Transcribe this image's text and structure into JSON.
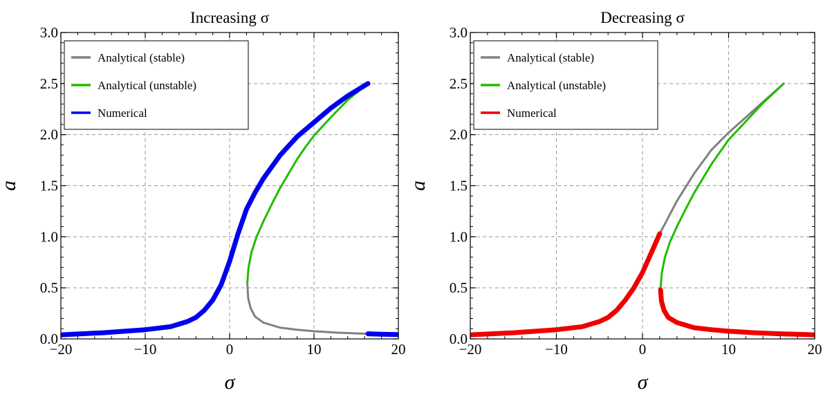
{
  "chart_data": [
    {
      "type": "line",
      "title": "Increasing σ",
      "xlabel": "σ",
      "ylabel": "a",
      "xlim": [
        -20,
        20
      ],
      "ylim": [
        0,
        3
      ],
      "xticks": [
        -20,
        -10,
        0,
        10,
        20
      ],
      "xtick_labels": [
        "−20",
        "−10",
        "0",
        "10",
        "20"
      ],
      "yticks": [
        0,
        0.5,
        1,
        1.5,
        2,
        2.5,
        3
      ],
      "ytick_labels": [
        "0.0",
        "0.5",
        "1.0",
        "1.5",
        "2.0",
        "2.5",
        "3.0"
      ],
      "grid": true,
      "legend_position": "top-left",
      "series": [
        {
          "name": "Analytical (stable)",
          "color": "#808080",
          "width": 3,
          "x": [
            -20,
            -10,
            -5,
            -3,
            -1,
            0,
            1,
            2,
            4,
            6,
            8,
            10,
            12,
            14,
            16.4
          ],
          "y": [
            0.04,
            0.08,
            0.16,
            0.27,
            0.52,
            0.76,
            1.03,
            1.27,
            1.58,
            1.8,
            1.98,
            2.12,
            2.26,
            2.38,
            2.5
          ]
        },
        {
          "name": "Analytical (unstable)",
          "color": "#22bb00",
          "width": 3,
          "x": [
            2.1,
            2.25,
            2.6,
            3.2,
            4,
            5,
            6,
            7,
            8,
            9,
            10,
            12,
            14,
            16.4
          ],
          "y": [
            0.55,
            0.7,
            0.85,
            1.0,
            1.15,
            1.32,
            1.48,
            1.62,
            1.76,
            1.88,
            1.99,
            2.17,
            2.34,
            2.5
          ]
        },
        {
          "name": "",
          "color": "#808080",
          "width": 3,
          "x": [
            2.1,
            2.2,
            2.5,
            3,
            4,
            6,
            8,
            10,
            13,
            16.4
          ],
          "y": [
            0.55,
            0.4,
            0.3,
            0.22,
            0.16,
            0.11,
            0.09,
            0.075,
            0.06,
            0.05
          ]
        },
        {
          "name": "Numerical",
          "color": "#0000ee",
          "width": 7,
          "x": [
            -20,
            -15,
            -10,
            -7,
            -5,
            -4,
            -3,
            -2,
            -1,
            0,
            1,
            2,
            3,
            4,
            6,
            8,
            10,
            12,
            14,
            16.4
          ],
          "y": [
            0.04,
            0.06,
            0.09,
            0.12,
            0.17,
            0.21,
            0.28,
            0.38,
            0.53,
            0.76,
            1.03,
            1.27,
            1.43,
            1.57,
            1.8,
            1.98,
            2.12,
            2.26,
            2.38,
            2.5
          ]
        },
        {
          "name": "",
          "color": "#0000ee",
          "width": 7,
          "x": [
            16.4,
            17,
            18,
            19,
            20
          ],
          "y": [
            0.05,
            0.048,
            0.046,
            0.044,
            0.042
          ]
        }
      ]
    },
    {
      "type": "line",
      "title": "Decreasing σ",
      "xlabel": "σ",
      "ylabel": "a",
      "xlim": [
        -20,
        20
      ],
      "ylim": [
        0,
        3
      ],
      "xticks": [
        -20,
        -10,
        0,
        10,
        20
      ],
      "xtick_labels": [
        "−20",
        "−10",
        "0",
        "10",
        "20"
      ],
      "yticks": [
        0,
        0.5,
        1,
        1.5,
        2,
        2.5,
        3
      ],
      "ytick_labels": [
        "0.0",
        "0.5",
        "1.0",
        "1.5",
        "2.0",
        "2.5",
        "3.0"
      ],
      "grid": true,
      "legend_position": "top-left",
      "series": [
        {
          "name": "Analytical (stable)",
          "color": "#808080",
          "width": 3,
          "x": [
            2,
            4,
            6,
            8,
            10,
            12,
            14,
            16.4
          ],
          "y": [
            1.03,
            1.35,
            1.62,
            1.85,
            2.02,
            2.17,
            2.32,
            2.5
          ]
        },
        {
          "name": "Analytical (unstable)",
          "color": "#22bb00",
          "width": 3,
          "x": [
            2.1,
            2.25,
            2.6,
            3.2,
            4,
            5,
            6,
            7,
            8,
            9,
            10,
            12,
            14,
            16.4
          ],
          "y": [
            0.5,
            0.65,
            0.8,
            0.95,
            1.1,
            1.27,
            1.43,
            1.57,
            1.71,
            1.83,
            1.95,
            2.13,
            2.31,
            2.5
          ]
        },
        {
          "name": "Numerical",
          "color": "#ee0000",
          "width": 7,
          "x": [
            -20,
            -15,
            -10,
            -7,
            -5,
            -4,
            -3,
            -2,
            -1,
            0,
            1,
            2
          ],
          "y": [
            0.04,
            0.06,
            0.09,
            0.12,
            0.17,
            0.21,
            0.28,
            0.38,
            0.5,
            0.65,
            0.84,
            1.03
          ]
        },
        {
          "name": "",
          "color": "#ee0000",
          "width": 7,
          "x": [
            2.1,
            2.2,
            2.5,
            3,
            4,
            6,
            8,
            10,
            13,
            16,
            20
          ],
          "y": [
            0.48,
            0.37,
            0.28,
            0.21,
            0.16,
            0.11,
            0.09,
            0.075,
            0.06,
            0.05,
            0.04
          ]
        }
      ]
    }
  ]
}
